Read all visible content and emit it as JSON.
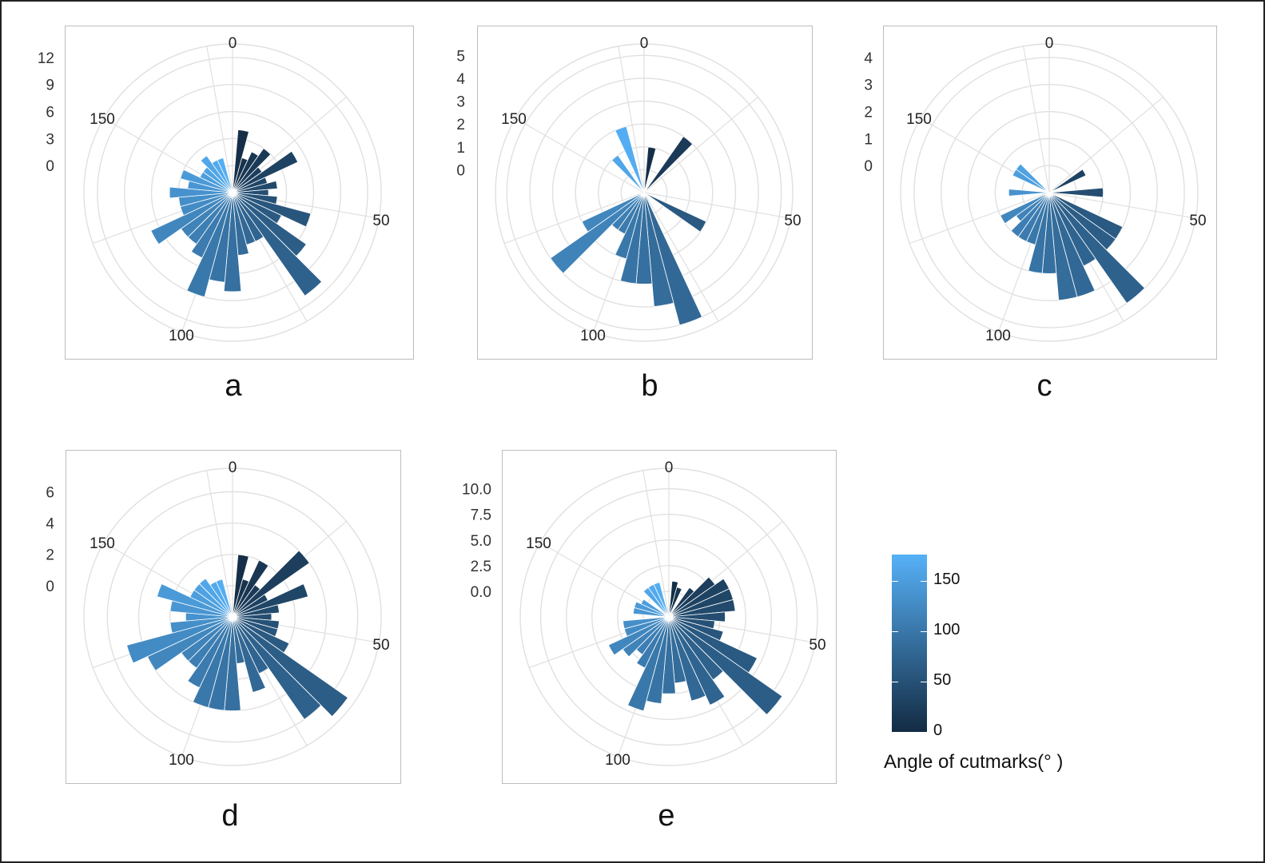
{
  "colors": {
    "low": "#132b43",
    "high": "#56b1f7",
    "grid": "#e0e0e0",
    "frame": "#bdbdbd"
  },
  "legend": {
    "title": "Angle of cutmarks(° )",
    "ticks": [
      "150",
      "100",
      "50",
      "0"
    ],
    "tick_values": [
      150,
      100,
      50,
      0
    ],
    "range": [
      0,
      175
    ]
  },
  "chart_data": [
    {
      "panel": "a",
      "type": "polar-bar",
      "angle_range": [
        0,
        180
      ],
      "angle_ticks": [
        "0",
        "50",
        "100",
        "150"
      ],
      "angle_tick_values": [
        0,
        50,
        100,
        150
      ],
      "radial_ticks": [
        "12",
        "9",
        "6",
        "3",
        "0"
      ],
      "radial_tick_values": [
        12,
        9,
        6,
        3,
        0
      ],
      "rlim": [
        -3,
        13.5
      ],
      "bin_width": 5,
      "bars": [
        {
          "angle": 5,
          "count": 4
        },
        {
          "angle": 10,
          "count": 1
        },
        {
          "angle": 15,
          "count": 2
        },
        {
          "angle": 20,
          "count": 3
        },
        {
          "angle": 25,
          "count": 1
        },
        {
          "angle": 30,
          "count": 5
        },
        {
          "angle": 35,
          "count": 1
        },
        {
          "angle": 40,
          "count": 2
        },
        {
          "angle": 45,
          "count": 1
        },
        {
          "angle": 50,
          "count": 2
        },
        {
          "angle": 55,
          "count": 6
        },
        {
          "angle": 60,
          "count": 3
        },
        {
          "angle": 65,
          "count": 7
        },
        {
          "angle": 70,
          "count": 11
        },
        {
          "angle": 75,
          "count": 3
        },
        {
          "angle": 80,
          "count": 3
        },
        {
          "angle": 85,
          "count": 4
        },
        {
          "angle": 90,
          "count": 8
        },
        {
          "angle": 95,
          "count": 7
        },
        {
          "angle": 100,
          "count": 9
        },
        {
          "angle": 105,
          "count": 5
        },
        {
          "angle": 110,
          "count": 4
        },
        {
          "angle": 115,
          "count": 4
        },
        {
          "angle": 120,
          "count": 7
        },
        {
          "angle": 125,
          "count": 3
        },
        {
          "angle": 130,
          "count": 3
        },
        {
          "angle": 135,
          "count": 4
        },
        {
          "angle": 140,
          "count": 2
        },
        {
          "angle": 145,
          "count": 3
        },
        {
          "angle": 150,
          "count": 1
        },
        {
          "angle": 155,
          "count": 1
        },
        {
          "angle": 160,
          "count": 2
        },
        {
          "angle": 165,
          "count": 1
        },
        {
          "angle": 170,
          "count": 1
        }
      ]
    },
    {
      "panel": "b",
      "type": "polar-bar",
      "angle_range": [
        0,
        180
      ],
      "angle_ticks": [
        "0",
        "50",
        "100",
        "150"
      ],
      "angle_tick_values": [
        0,
        50,
        100,
        150
      ],
      "radial_ticks": [
        "5",
        "4",
        "3",
        "2",
        "1",
        "0"
      ],
      "radial_tick_values": [
        5,
        4,
        3,
        2,
        1,
        0
      ],
      "rlim": [
        -1,
        5.5
      ],
      "bin_width": 5,
      "bars": [
        {
          "angle": 5,
          "count": 1
        },
        {
          "angle": 20,
          "count": 2
        },
        {
          "angle": 60,
          "count": 2
        },
        {
          "angle": 80,
          "count": 5
        },
        {
          "angle": 85,
          "count": 4
        },
        {
          "angle": 90,
          "count": 3
        },
        {
          "angle": 95,
          "count": 3
        },
        {
          "angle": 100,
          "count": 2
        },
        {
          "angle": 105,
          "count": 1
        },
        {
          "angle": 110,
          "count": 1
        },
        {
          "angle": 115,
          "count": 4
        },
        {
          "angle": 120,
          "count": 2
        },
        {
          "angle": 160,
          "count": 1
        },
        {
          "angle": 170,
          "count": 2
        }
      ]
    },
    {
      "panel": "c",
      "type": "polar-bar",
      "angle_range": [
        0,
        180
      ],
      "angle_ticks": [
        "0",
        "50",
        "100",
        "150"
      ],
      "angle_tick_values": [
        0,
        50,
        100,
        150
      ],
      "radial_ticks": [
        "4",
        "3",
        "2",
        "1",
        "0"
      ],
      "radial_tick_values": [
        4,
        3,
        2,
        1,
        0
      ],
      "rlim": [
        -1,
        4.5
      ],
      "bin_width": 5,
      "bars": [
        {
          "angle": 30,
          "count": 0.5
        },
        {
          "angle": 45,
          "count": 1
        },
        {
          "angle": 60,
          "count": 2
        },
        {
          "angle": 65,
          "count": 2
        },
        {
          "angle": 70,
          "count": 4
        },
        {
          "angle": 75,
          "count": 2
        },
        {
          "angle": 80,
          "count": 3
        },
        {
          "angle": 85,
          "count": 3
        },
        {
          "angle": 90,
          "count": 2
        },
        {
          "angle": 95,
          "count": 2
        },
        {
          "angle": 100,
          "count": 1
        },
        {
          "angle": 105,
          "count": 1
        },
        {
          "angle": 110,
          "count": 1
        },
        {
          "angle": 115,
          "count": 0.5
        },
        {
          "angle": 120,
          "count": 1
        },
        {
          "angle": 135,
          "count": 0.5
        },
        {
          "angle": 150,
          "count": 0.5
        },
        {
          "angle": 155,
          "count": 0.5
        }
      ]
    },
    {
      "panel": "d",
      "type": "polar-bar",
      "angle_range": [
        0,
        180
      ],
      "angle_ticks": [
        "0",
        "50",
        "100",
        "150"
      ],
      "angle_tick_values": [
        0,
        50,
        100,
        150
      ],
      "radial_ticks": [
        "6",
        "4",
        "2",
        "0"
      ],
      "radial_tick_values": [
        6,
        4,
        2,
        0
      ],
      "rlim": [
        -2,
        7.5
      ],
      "bin_width": 5,
      "bars": [
        {
          "angle": 5,
          "count": 2
        },
        {
          "angle": 10,
          "count": 0.5
        },
        {
          "angle": 15,
          "count": 2
        },
        {
          "angle": 20,
          "count": 0.5
        },
        {
          "angle": 25,
          "count": 4
        },
        {
          "angle": 30,
          "count": 0.5
        },
        {
          "angle": 35,
          "count": 3
        },
        {
          "angle": 40,
          "count": 1
        },
        {
          "angle": 45,
          "count": 0.5
        },
        {
          "angle": 50,
          "count": 1
        },
        {
          "angle": 55,
          "count": 1
        },
        {
          "angle": 60,
          "count": 2
        },
        {
          "angle": 65,
          "count": 7
        },
        {
          "angle": 70,
          "count": 6
        },
        {
          "angle": 75,
          "count": 2
        },
        {
          "angle": 80,
          "count": 3
        },
        {
          "angle": 85,
          "count": 1
        },
        {
          "angle": 90,
          "count": 4
        },
        {
          "angle": 95,
          "count": 4
        },
        {
          "angle": 100,
          "count": 4
        },
        {
          "angle": 105,
          "count": 3
        },
        {
          "angle": 110,
          "count": 2
        },
        {
          "angle": 115,
          "count": 2
        },
        {
          "angle": 120,
          "count": 4
        },
        {
          "angle": 125,
          "count": 5
        },
        {
          "angle": 130,
          "count": 2
        },
        {
          "angle": 135,
          "count": 1
        },
        {
          "angle": 140,
          "count": 2
        },
        {
          "angle": 145,
          "count": 3
        },
        {
          "angle": 150,
          "count": 1
        },
        {
          "angle": 155,
          "count": 1
        },
        {
          "angle": 160,
          "count": 1
        },
        {
          "angle": 165,
          "count": 0.5
        },
        {
          "angle": 170,
          "count": 0.5
        }
      ]
    },
    {
      "panel": "e",
      "type": "polar-bar",
      "angle_range": [
        0,
        180
      ],
      "angle_ticks": [
        "0",
        "50",
        "100",
        "150"
      ],
      "angle_tick_values": [
        0,
        50,
        100,
        150
      ],
      "radial_ticks": [
        "10.0",
        "7.5",
        "5.0",
        "2.5",
        "0.0"
      ],
      "radial_tick_values": [
        10,
        7.5,
        5,
        2.5,
        0
      ],
      "rlim": [
        -2.5,
        12
      ],
      "bin_width": 5,
      "bars": [
        {
          "angle": 5,
          "count": 1
        },
        {
          "angle": 10,
          "count": 0.5
        },
        {
          "angle": 20,
          "count": 1
        },
        {
          "angle": 25,
          "count": 3
        },
        {
          "angle": 30,
          "count": 4
        },
        {
          "angle": 35,
          "count": 4
        },
        {
          "angle": 40,
          "count": 4
        },
        {
          "angle": 45,
          "count": 3
        },
        {
          "angle": 50,
          "count": 2
        },
        {
          "angle": 55,
          "count": 3
        },
        {
          "angle": 60,
          "count": 7
        },
        {
          "angle": 65,
          "count": 11
        },
        {
          "angle": 70,
          "count": 5
        },
        {
          "angle": 75,
          "count": 7
        },
        {
          "angle": 80,
          "count": 6
        },
        {
          "angle": 85,
          "count": 4
        },
        {
          "angle": 90,
          "count": 5
        },
        {
          "angle": 95,
          "count": 6
        },
        {
          "angle": 100,
          "count": 7
        },
        {
          "angle": 105,
          "count": 3
        },
        {
          "angle": 110,
          "count": 2
        },
        {
          "angle": 115,
          "count": 3
        },
        {
          "angle": 120,
          "count": 4
        },
        {
          "angle": 125,
          "count": 2
        },
        {
          "angle": 130,
          "count": 2
        },
        {
          "angle": 140,
          "count": 1
        },
        {
          "angle": 145,
          "count": 1
        },
        {
          "angle": 150,
          "count": 0.5
        },
        {
          "angle": 160,
          "count": 1
        },
        {
          "angle": 165,
          "count": 1
        },
        {
          "angle": 170,
          "count": 1
        }
      ]
    }
  ]
}
